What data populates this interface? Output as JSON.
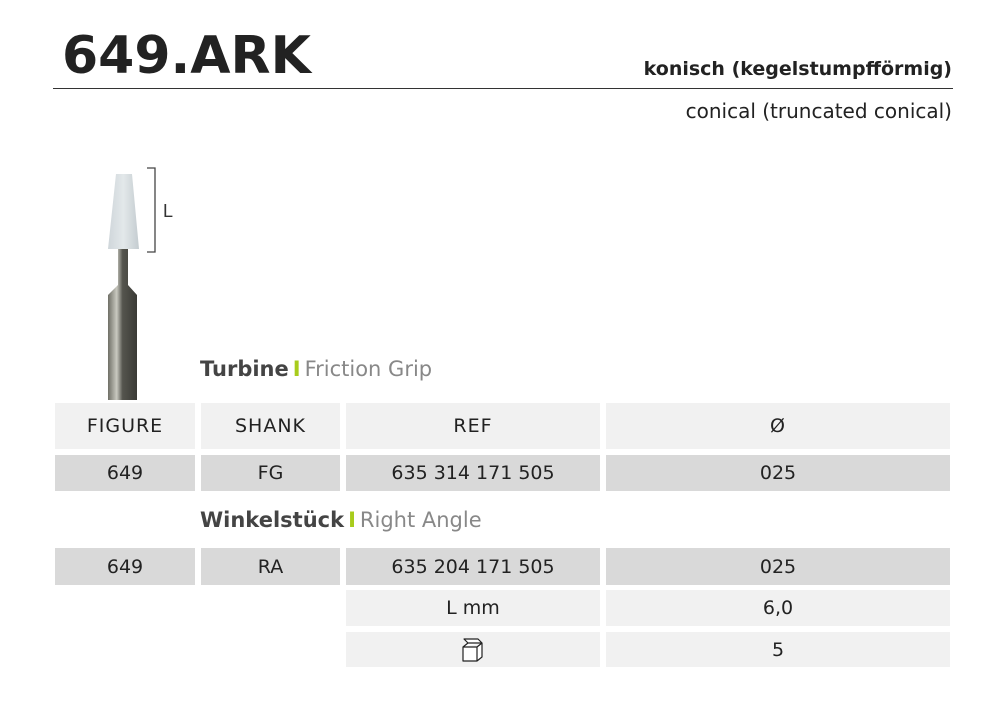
{
  "title": "649.ARK",
  "shape_de": "konisch (kegelstumpfförmig)",
  "shape_en": "conical (truncated conical)",
  "dimension_label": "L",
  "sections": {
    "turbine": {
      "label": "Turbine",
      "separator": "I",
      "sub": "Friction Grip"
    },
    "right_angle": {
      "label": "Winkelstück",
      "separator": "I",
      "sub": "Right Angle"
    }
  },
  "table": {
    "headers": [
      "FIGURE",
      "SHANK",
      "REF",
      "Ø"
    ],
    "fg_row": [
      "649",
      "FG",
      "635 314 171 505",
      "025"
    ],
    "ra_row": [
      "649",
      "RA",
      "635 204 171 505",
      "025"
    ],
    "length": {
      "label": "L mm",
      "value": "6,0"
    },
    "pack": {
      "icon": "package-box-icon",
      "value": "5"
    }
  },
  "colors": {
    "accent": "#a8cc1c",
    "row_dark": "#d9d9d9",
    "row_light": "#f1f1f1"
  }
}
